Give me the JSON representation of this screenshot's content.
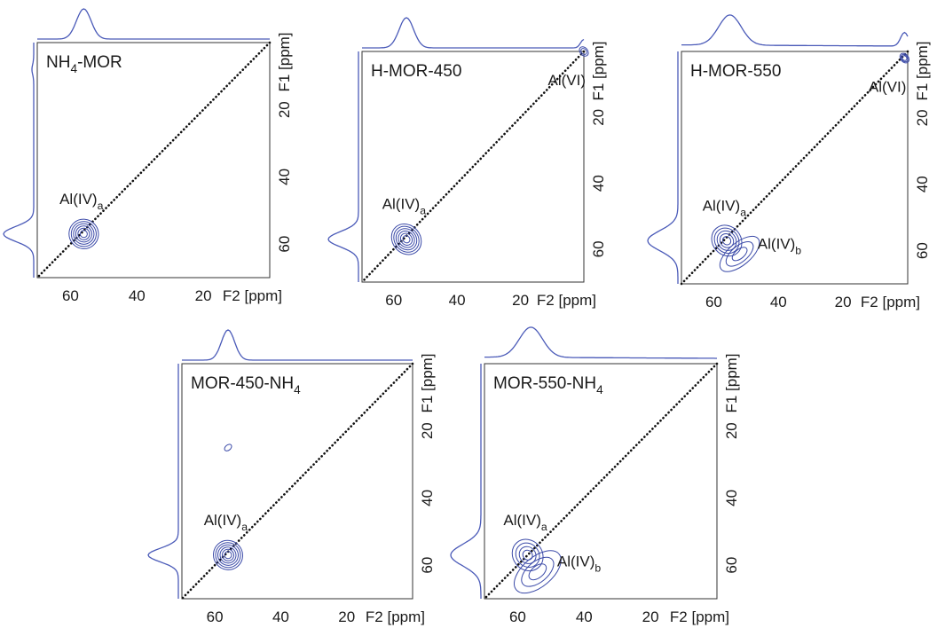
{
  "figure": {
    "colors": {
      "contour": "#3b4aa8",
      "projection": "#4a5ab8",
      "frame": "#333333",
      "diagonal": "#111111",
      "text": "#1a1a1a"
    }
  },
  "chart_data": [
    {
      "type": "contour",
      "title": "NH4-MOR",
      "title_main": "NH",
      "title_sub": "4",
      "title_tail": "-MOR",
      "xlabel": "F2 [ppm]",
      "ylabel": "F1 [ppm]",
      "xlim": [
        70,
        0
      ],
      "ylim": [
        0,
        70
      ],
      "xticks": [
        60,
        40,
        20
      ],
      "yticks": [
        20,
        40,
        60
      ],
      "diagonal": true,
      "peaks": [
        {
          "label": "Al(IV)a",
          "label_main": "Al(IV)",
          "label_sub": "a",
          "f2": 56,
          "f1": 57,
          "w2": 4,
          "w1": 4,
          "levels": 6
        }
      ],
      "f2_projection": [
        {
          "ppm": 56,
          "height": 1.0,
          "width": 2.2
        }
      ],
      "f1_projection": [
        {
          "ppm": 57,
          "height": 1.0,
          "width": 2.2
        },
        {
          "ppm": 8,
          "height": 0.06,
          "width": 1.5
        }
      ]
    },
    {
      "type": "contour",
      "title": "H-MOR-450",
      "title_main": "H-MOR-450",
      "title_sub": "",
      "title_tail": "",
      "xlabel": "F2 [ppm]",
      "ylabel": "F1 [ppm]",
      "xlim": [
        70,
        0
      ],
      "ylim": [
        0,
        70
      ],
      "xticks": [
        60,
        40,
        20
      ],
      "yticks": [
        20,
        40,
        60
      ],
      "diagonal": true,
      "peaks": [
        {
          "label": "Al(IV)a",
          "label_main": "Al(IV)",
          "label_sub": "a",
          "f2": 56,
          "f1": 57,
          "w2": 4,
          "w1": 4.5,
          "levels": 6
        },
        {
          "label": "Al(VI)",
          "label_main": "Al(VI)",
          "label_sub": "",
          "f2": 0,
          "f1": 0,
          "w2": 0.8,
          "w1": 1.2,
          "levels": 2
        }
      ],
      "f2_projection": [
        {
          "ppm": 56,
          "height": 1.0,
          "width": 2.3
        },
        {
          "ppm": 0,
          "height": 0.28,
          "width": 1.0
        }
      ],
      "f1_projection": [
        {
          "ppm": 57,
          "height": 1.0,
          "width": 2.3
        }
      ]
    },
    {
      "type": "contour",
      "title": "H-MOR-550",
      "title_main": "H-MOR-550",
      "title_sub": "",
      "title_tail": "",
      "xlabel": "F2 [ppm]",
      "ylabel": "F1 [ppm]",
      "xlim": [
        70,
        0
      ],
      "ylim": [
        0,
        70
      ],
      "xticks": [
        60,
        40,
        20
      ],
      "yticks": [
        20,
        40,
        60
      ],
      "diagonal": true,
      "peaks": [
        {
          "label": "Al(IV)a",
          "label_main": "Al(IV)",
          "label_sub": "a",
          "f2": 56,
          "f1": 57,
          "w2": 4,
          "w1": 4.5,
          "levels": 5
        },
        {
          "label": "Al(IV)b",
          "label_main": "Al(IV)",
          "label_sub": "b",
          "f2": 52,
          "f1": 61,
          "w2": 7,
          "w1": 3,
          "levels": 3
        },
        {
          "label": "Al(VI)",
          "label_main": "Al(VI)",
          "label_sub": "",
          "f2": 1,
          "f1": 2,
          "w2": 0.8,
          "w1": 1.2,
          "levels": 3
        }
      ],
      "f2_projection": [
        {
          "ppm": 55,
          "height": 1.0,
          "width": 3.5
        },
        {
          "ppm": 1,
          "height": 0.45,
          "width": 1.2
        }
      ],
      "f1_projection": [
        {
          "ppm": 57,
          "height": 1.0,
          "width": 3.0
        }
      ]
    },
    {
      "type": "contour",
      "title": "MOR-450-NH4",
      "title_main": "MOR-450-NH",
      "title_sub": "4",
      "title_tail": "",
      "xlabel": "F2 [ppm]",
      "ylabel": "F1 [ppm]",
      "xlim": [
        70,
        0
      ],
      "ylim": [
        0,
        70
      ],
      "xticks": [
        60,
        40,
        20
      ],
      "yticks": [
        20,
        40,
        60
      ],
      "diagonal": true,
      "peaks": [
        {
          "label": "Al(IV)a",
          "label_main": "Al(IV)",
          "label_sub": "a",
          "f2": 56,
          "f1": 57,
          "w2": 4,
          "w1": 4,
          "levels": 6
        },
        {
          "label": "",
          "label_main": "",
          "label_sub": "",
          "f2": 56,
          "f1": 25,
          "w2": 0.8,
          "w1": 0.4,
          "levels": 1
        }
      ],
      "f2_projection": [
        {
          "ppm": 56,
          "height": 1.0,
          "width": 2.0
        }
      ],
      "f1_projection": [
        {
          "ppm": 57,
          "height": 1.0,
          "width": 2.0
        }
      ]
    },
    {
      "type": "contour",
      "title": "MOR-550-NH4",
      "title_main": "MOR-550-NH",
      "title_sub": "4",
      "title_tail": "",
      "xlabel": "F2 [ppm]",
      "ylabel": "F1 [ppm]",
      "xlim": [
        70,
        0
      ],
      "ylim": [
        0,
        70
      ],
      "xticks": [
        60,
        40,
        20
      ],
      "yticks": [
        20,
        40,
        60
      ],
      "diagonal": true,
      "peaks": [
        {
          "label": "Al(IV)a",
          "label_main": "Al(IV)",
          "label_sub": "a",
          "f2": 57,
          "f1": 57,
          "w2": 4,
          "w1": 4.5,
          "levels": 4
        },
        {
          "label": "Al(IV)b",
          "label_main": "Al(IV)",
          "label_sub": "b",
          "f2": 54,
          "f1": 62,
          "w2": 8,
          "w1": 4,
          "levels": 3
        }
      ],
      "f2_projection": [
        {
          "ppm": 56,
          "height": 1.0,
          "width": 3.5
        }
      ],
      "f1_projection": [
        {
          "ppm": 57,
          "height": 1.0,
          "width": 3.2
        }
      ]
    }
  ]
}
